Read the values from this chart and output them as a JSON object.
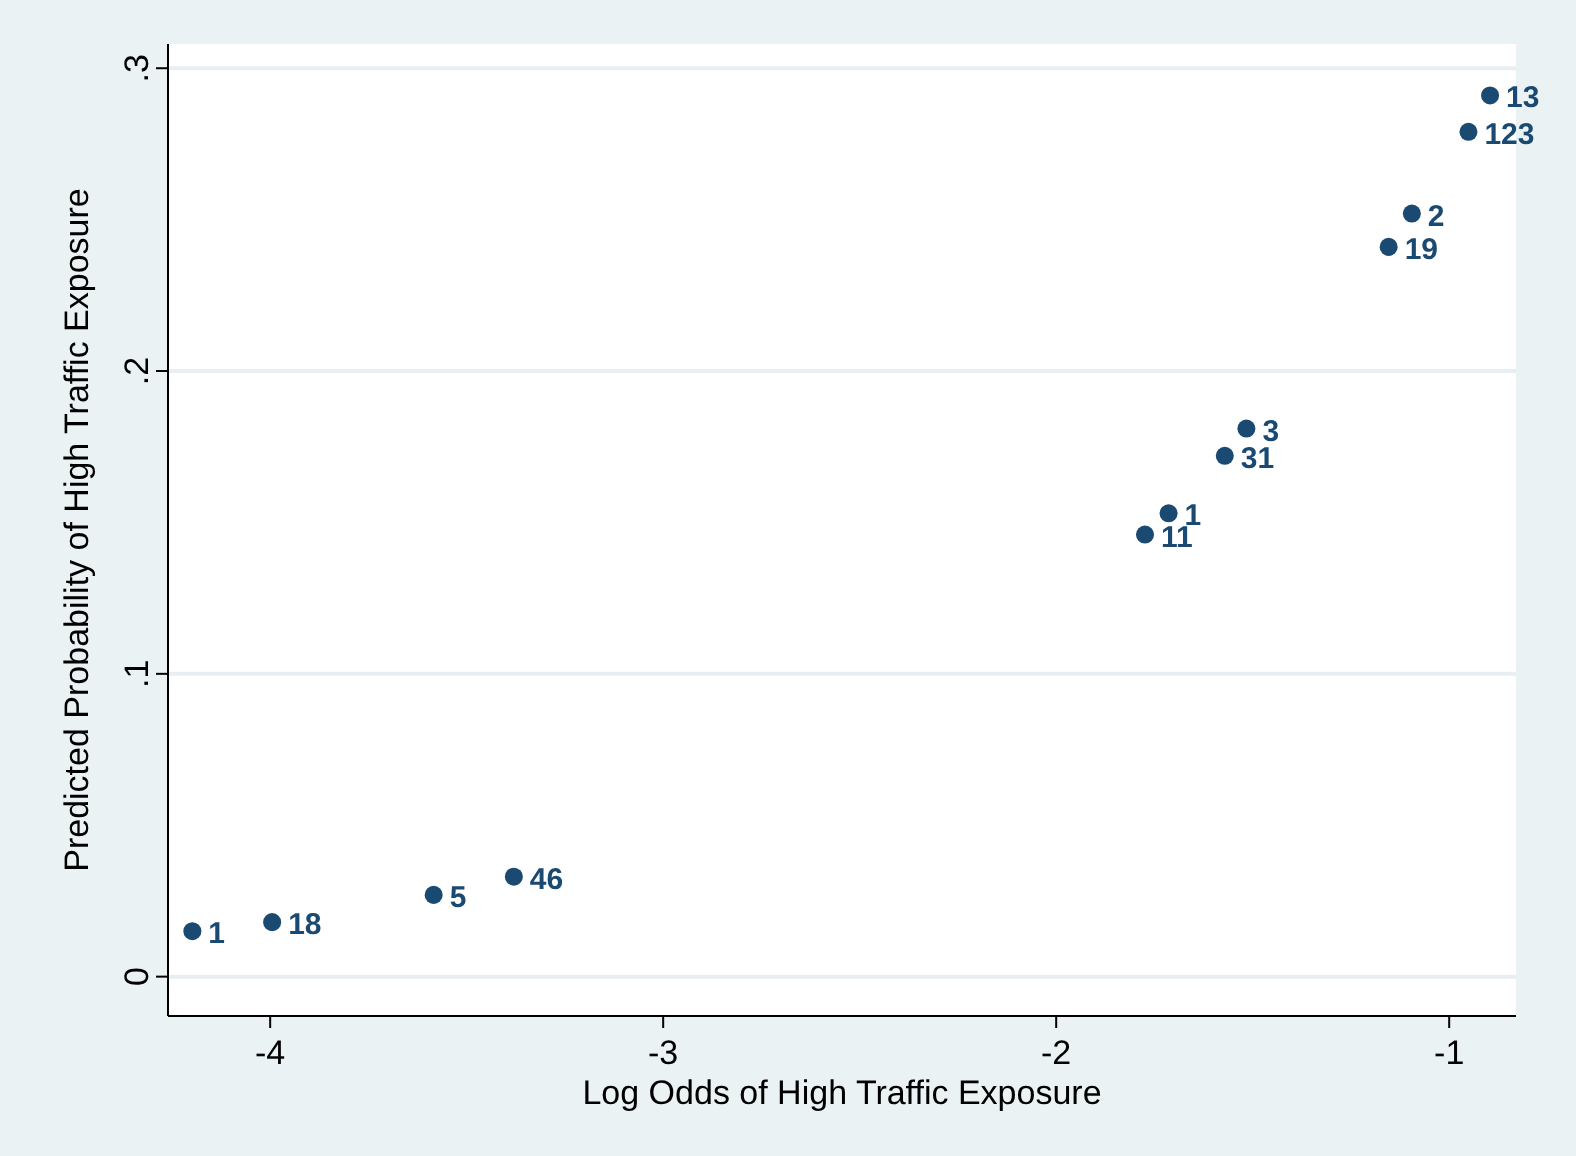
{
  "chart_data": {
    "type": "scatter",
    "xlabel": "Log Odds of High Traffic Exposure",
    "ylabel": "Predicted Probability of High Traffic Exposure",
    "x": [
      -4.198,
      -3.995,
      -3.584,
      -3.38,
      -1.774,
      -1.714,
      -1.571,
      -1.516,
      -1.154,
      -1.095,
      -0.951,
      -0.896
    ],
    "series": [
      {
        "color": "#1a4a72",
        "values": [
          0.015,
          0.018,
          0.027,
          0.033,
          0.146,
          0.153,
          0.172,
          0.181,
          0.241,
          0.252,
          0.279,
          0.291
        ]
      }
    ],
    "xlim": [
      -4.26,
      -0.83
    ],
    "xticks": [
      -4,
      -3,
      -2,
      -1
    ],
    "ylim": [
      -0.013,
      0.308
    ],
    "yticks": [
      {
        "value": 0,
        "label": "0"
      },
      {
        "value": 0.1,
        "label": ".1"
      },
      {
        "value": 0.2,
        "label": ".2"
      },
      {
        "value": 0.3,
        "label": ".3"
      }
    ],
    "grid": "y",
    "marker": "circle",
    "annotations": [
      {
        "text": "1",
        "x": -4.198,
        "y": 0.015
      },
      {
        "text": "18",
        "x": -3.995,
        "y": 0.018
      },
      {
        "text": "5",
        "x": -3.584,
        "y": 0.027
      },
      {
        "text": "46",
        "x": -3.38,
        "y": 0.033
      },
      {
        "text": "11",
        "x": -1.774,
        "y": 0.146
      },
      {
        "text": "1",
        "x": -1.714,
        "y": 0.153
      },
      {
        "text": "31",
        "x": -1.571,
        "y": 0.172
      },
      {
        "text": "3",
        "x": -1.516,
        "y": 0.181
      },
      {
        "text": "19",
        "x": -1.154,
        "y": 0.241
      },
      {
        "text": "2",
        "x": -1.095,
        "y": 0.252
      },
      {
        "text": "123",
        "x": -0.951,
        "y": 0.279
      },
      {
        "text": "13",
        "x": -0.896,
        "y": 0.291
      }
    ]
  }
}
